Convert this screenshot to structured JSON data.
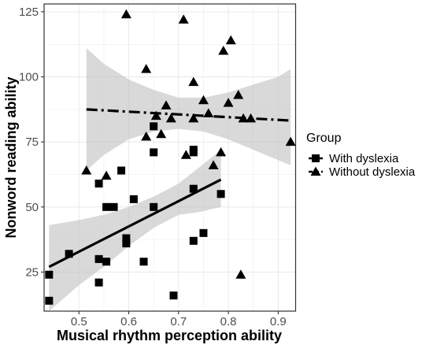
{
  "chart_data": {
    "type": "scatter",
    "xlabel": "Musical rhythm perception ability",
    "ylabel": "Nonword reading ability",
    "xlim": [
      0.43,
      0.935
    ],
    "ylim": [
      10,
      128
    ],
    "x_ticks": [
      0.5,
      0.6,
      0.7,
      0.8,
      0.9
    ],
    "y_ticks": [
      25,
      50,
      75,
      100,
      125
    ],
    "x_tick_labels": [
      "0.5",
      "0.6",
      "0.7",
      "0.8",
      "0.9"
    ],
    "y_tick_labels": [
      "25",
      "50",
      "75",
      "100",
      "125"
    ],
    "grid": true,
    "legend": {
      "title": "Group",
      "position": "right",
      "entries": [
        "With dyslexia",
        "Without dyslexia"
      ]
    },
    "colors": {
      "points": "#000000",
      "ribbon": "#bfbfbf",
      "grid": "#ebebeb",
      "panel_border": "#333333"
    },
    "series": [
      {
        "name": "With dyslexia",
        "marker": "square",
        "line_style": "solid",
        "fit": {
          "x": [
            0.44,
            0.785
          ],
          "y": [
            27,
            60.5
          ]
        },
        "ribbon": {
          "x": [
            0.44,
            0.5,
            0.55,
            0.6,
            0.65,
            0.7,
            0.74,
            0.785
          ],
          "lower": [
            10,
            20,
            27,
            35,
            42,
            47,
            48,
            50
          ],
          "upper": [
            43,
            45,
            47,
            50,
            54,
            59,
            65,
            72
          ]
        },
        "points": [
          {
            "x": 0.44,
            "y": 24
          },
          {
            "x": 0.44,
            "y": 14
          },
          {
            "x": 0.48,
            "y": 32
          },
          {
            "x": 0.54,
            "y": 59
          },
          {
            "x": 0.54,
            "y": 30
          },
          {
            "x": 0.54,
            "y": 21
          },
          {
            "x": 0.555,
            "y": 50
          },
          {
            "x": 0.555,
            "y": 29
          },
          {
            "x": 0.57,
            "y": 50
          },
          {
            "x": 0.585,
            "y": 64
          },
          {
            "x": 0.595,
            "y": 38
          },
          {
            "x": 0.595,
            "y": 36
          },
          {
            "x": 0.61,
            "y": 53
          },
          {
            "x": 0.63,
            "y": 29
          },
          {
            "x": 0.65,
            "y": 81
          },
          {
            "x": 0.65,
            "y": 71
          },
          {
            "x": 0.65,
            "y": 50
          },
          {
            "x": 0.69,
            "y": 16
          },
          {
            "x": 0.73,
            "y": 72
          },
          {
            "x": 0.73,
            "y": 71
          },
          {
            "x": 0.73,
            "y": 57
          },
          {
            "x": 0.73,
            "y": 37
          },
          {
            "x": 0.75,
            "y": 40
          },
          {
            "x": 0.785,
            "y": 55
          }
        ]
      },
      {
        "name": "Without dyslexia",
        "marker": "triangle",
        "line_style": "dashed",
        "fit": {
          "x": [
            0.515,
            0.925
          ],
          "y": [
            87.5,
            83.2
          ]
        },
        "ribbon": {
          "x": [
            0.515,
            0.55,
            0.6,
            0.65,
            0.7,
            0.75,
            0.8,
            0.85,
            0.9,
            0.925
          ],
          "lower": [
            64,
            70,
            76,
            79,
            80,
            79,
            76,
            72,
            68,
            66
          ],
          "upper": [
            111,
            105,
            99,
            95,
            92,
            92,
            94,
            97,
            100,
            103
          ]
        },
        "points": [
          {
            "x": 0.515,
            "y": 64
          },
          {
            "x": 0.555,
            "y": 62
          },
          {
            "x": 0.595,
            "y": 124
          },
          {
            "x": 0.635,
            "y": 103
          },
          {
            "x": 0.635,
            "y": 77
          },
          {
            "x": 0.655,
            "y": 85
          },
          {
            "x": 0.665,
            "y": 78
          },
          {
            "x": 0.675,
            "y": 89
          },
          {
            "x": 0.685,
            "y": 84
          },
          {
            "x": 0.71,
            "y": 122
          },
          {
            "x": 0.715,
            "y": 70
          },
          {
            "x": 0.73,
            "y": 98
          },
          {
            "x": 0.73,
            "y": 84
          },
          {
            "x": 0.75,
            "y": 91
          },
          {
            "x": 0.76,
            "y": 86
          },
          {
            "x": 0.77,
            "y": 66
          },
          {
            "x": 0.785,
            "y": 71
          },
          {
            "x": 0.79,
            "y": 110
          },
          {
            "x": 0.8,
            "y": 90
          },
          {
            "x": 0.805,
            "y": 114
          },
          {
            "x": 0.82,
            "y": 93
          },
          {
            "x": 0.825,
            "y": 24
          },
          {
            "x": 0.83,
            "y": 84
          },
          {
            "x": 0.845,
            "y": 84
          },
          {
            "x": 0.925,
            "y": 75
          }
        ]
      }
    ]
  }
}
